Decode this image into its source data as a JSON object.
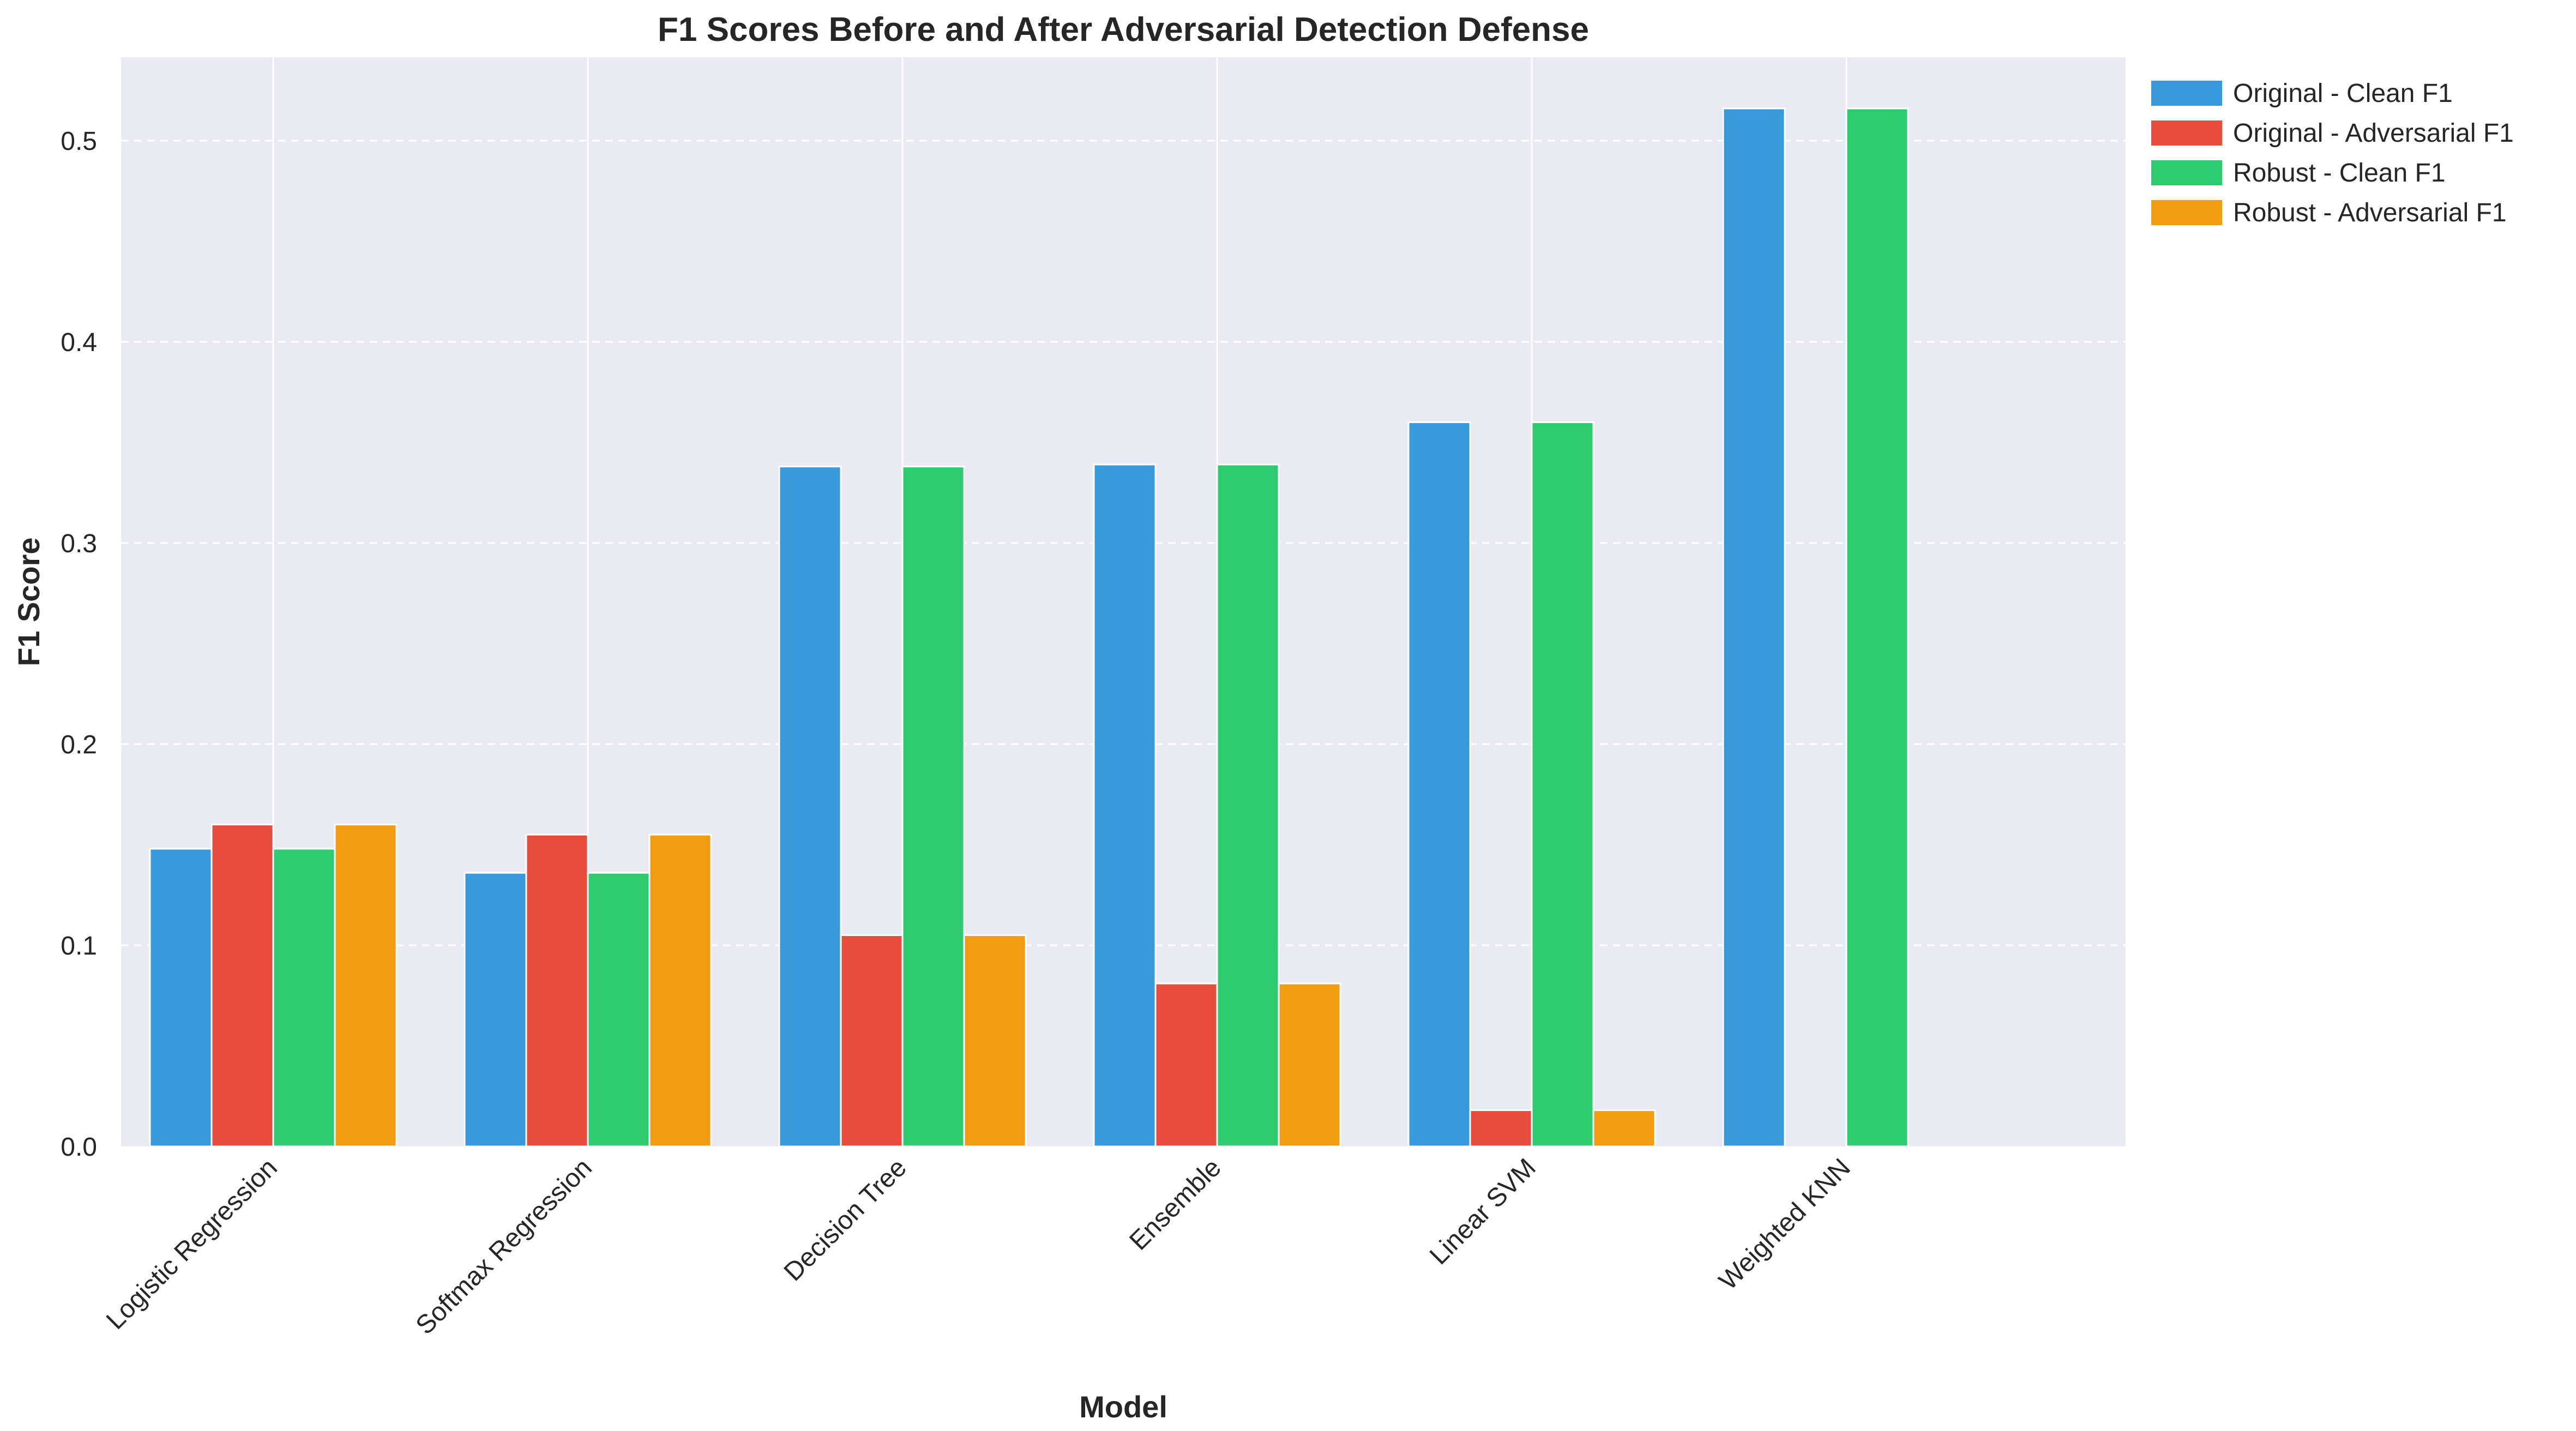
{
  "chart_data": {
    "type": "bar",
    "title": "F1 Scores Before and After Adversarial Detection Defense",
    "xlabel": "Model",
    "ylabel": "F1 Score",
    "ylim": [
      0,
      0.54
    ],
    "yticks": [
      0.0,
      0.1,
      0.2,
      0.3,
      0.4,
      0.5
    ],
    "ytick_labels": [
      "0.0",
      "0.1",
      "0.2",
      "0.3",
      "0.4",
      "0.5"
    ],
    "grid": true,
    "legend_position": "outside-top-right",
    "categories": [
      "Logistic Regression",
      "Softmax Regression",
      "Decision Tree",
      "Ensemble",
      "Linear SVM",
      "Weighted KNN"
    ],
    "series": [
      {
        "name": "Original - Clean F1",
        "color": "#3899db",
        "values": [
          0.148,
          0.136,
          0.338,
          0.339,
          0.36,
          0.516
        ]
      },
      {
        "name": "Original - Adversarial F1",
        "color": "#e84c3d",
        "values": [
          0.16,
          0.155,
          0.105,
          0.081,
          0.018,
          0.0
        ]
      },
      {
        "name": "Robust - Clean F1",
        "color": "#2dcc70",
        "values": [
          0.148,
          0.136,
          0.338,
          0.339,
          0.36,
          0.516
        ]
      },
      {
        "name": "Robust - Adversarial F1",
        "color": "#f39c12",
        "values": [
          0.16,
          0.155,
          0.105,
          0.081,
          0.018,
          0.0
        ]
      }
    ]
  },
  "colors": {
    "plot_background": "#eaeaf2",
    "grid": "#ffffff",
    "text": "#262626"
  }
}
